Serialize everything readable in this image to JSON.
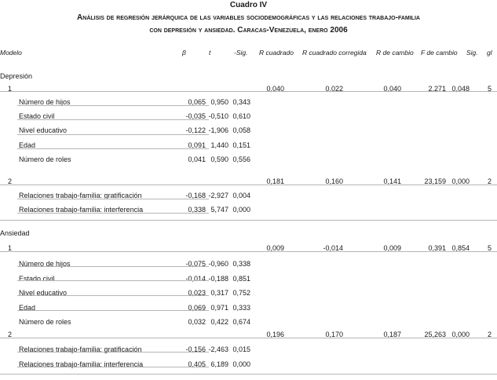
{
  "title": {
    "label": "Cuadro IV",
    "line1": "Análisis de regresión jerárquica de las variables sociodemográficas y las relaciones trabajo-familia",
    "line2": "con depresión y ansiedad. Caracas-Venezuela, enero 2006"
  },
  "headers": [
    "Modelo",
    "β",
    "t",
    "-Sig.",
    "R cuadrado",
    "R cuadrado corregida",
    "R de cambio",
    "F de cambio",
    "Sig.",
    "gl"
  ],
  "sections": [
    {
      "name": "Depresión",
      "models": [
        {
          "model": "1",
          "stats": [
            "0,040",
            "0,022",
            "0,040",
            "2,271",
            "0,048",
            "5"
          ],
          "predictors": [
            {
              "name": "Número de hijos",
              "values": [
                "0,065",
                "0,950",
                "0,343"
              ]
            },
            {
              "name": "Estado civil",
              "values": [
                "-0,035",
                "-0,510",
                "0,610"
              ]
            },
            {
              "name": "Nivel educativo",
              "values": [
                "-0,122",
                "-1,906",
                "0,058"
              ]
            },
            {
              "name": "Edad",
              "values": [
                "0,091",
                "1,440",
                "0,151"
              ]
            },
            {
              "name": "Número de roles",
              "values": [
                "0,041",
                "0,590",
                "0,556"
              ]
            }
          ]
        },
        {
          "model": "2",
          "stats": [
            "0,181",
            "0,160",
            "0,141",
            "23,159",
            "0,000",
            "2"
          ],
          "predictors": [
            {
              "name": "Relaciones trabajo-familia: gratificación",
              "values": [
                "-0,168",
                "-2,927",
                "0,004"
              ]
            },
            {
              "name": "Relaciones trabajo-familia: interferencia",
              "values": [
                "0,338",
                "5,747",
                "0,000"
              ]
            }
          ]
        }
      ]
    },
    {
      "name": "Ansiedad",
      "models": [
        {
          "model": "1",
          "stats": [
            "0,009",
            "-0,014",
            "0,009",
            "0,391",
            "0,854",
            "5"
          ],
          "predictors": [
            {
              "name": "Número de hijos",
              "values": [
                "-0,075",
                "-0,960",
                "0,338"
              ]
            },
            {
              "name": "Estado civil",
              "values": [
                "-0,014",
                "-0,188",
                "0,851"
              ]
            },
            {
              "name": "Nivel educativo",
              "values": [
                "0,023",
                "0,317",
                "0,752"
              ]
            },
            {
              "name": "Edad",
              "values": [
                "0,069",
                "0,971",
                "0,333"
              ]
            },
            {
              "name": "Número de roles",
              "values": [
                "0,032",
                "0,422",
                "0,674"
              ]
            }
          ]
        },
        {
          "model": "2",
          "stats": [
            "0,196",
            "0,170",
            "0,187",
            "25,263",
            "0,000",
            "2"
          ],
          "predictors": [
            {
              "name": "Relaciones trabajo-familia: gratificación",
              "values": [
                "-0,156",
                "-2,463",
                "0,015"
              ]
            },
            {
              "name": "Relaciones trabajo-familia: interferencia",
              "values": [
                "0,405",
                "6,189",
                "0,000"
              ]
            }
          ]
        }
      ]
    }
  ]
}
